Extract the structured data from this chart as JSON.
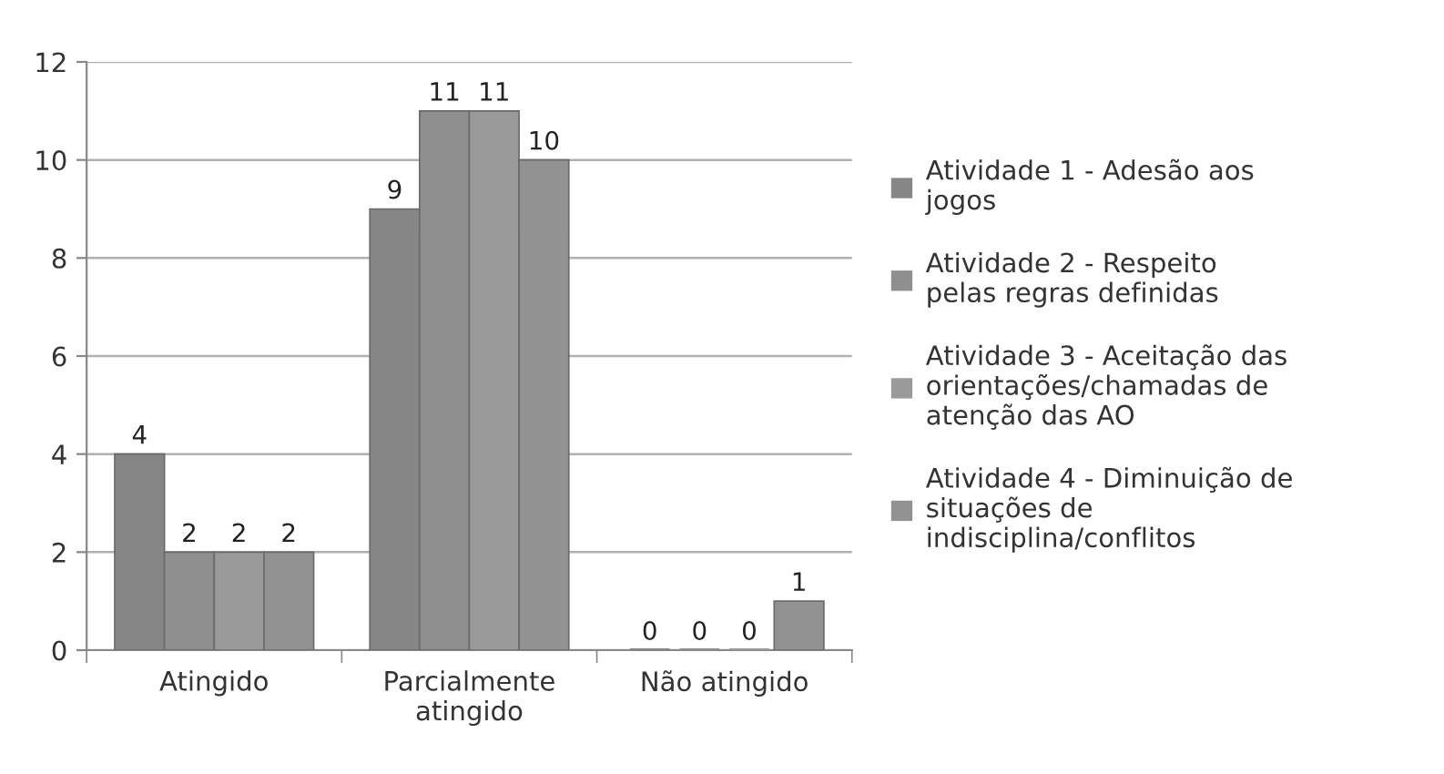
{
  "chart_data": {
    "type": "bar",
    "categories": [
      "Atingido",
      "Parcialmente atingido",
      "Não atingido"
    ],
    "series": [
      {
        "name": "Atividade 1 - Adesão aos jogos",
        "color": "#868686",
        "values": [
          4,
          9,
          0
        ]
      },
      {
        "name": "Atividade 2 - Respeito pelas regras definidas",
        "color": "#8f8f8f",
        "values": [
          2,
          11,
          0
        ]
      },
      {
        "name": "Atividade 3 - Aceitação das orientações/chamadas de atenção das AO",
        "color": "#9a9a9a",
        "values": [
          2,
          11,
          0
        ]
      },
      {
        "name": "Atividade 4 - Diminuição de situações de indisciplina/conflitos",
        "color": "#929292",
        "values": [
          2,
          10,
          1
        ]
      }
    ],
    "ylim": [
      0,
      12
    ],
    "yticks": [
      0,
      2,
      4,
      6,
      8,
      10,
      12
    ],
    "grid": "y",
    "legend": "right",
    "data_labels": true
  }
}
